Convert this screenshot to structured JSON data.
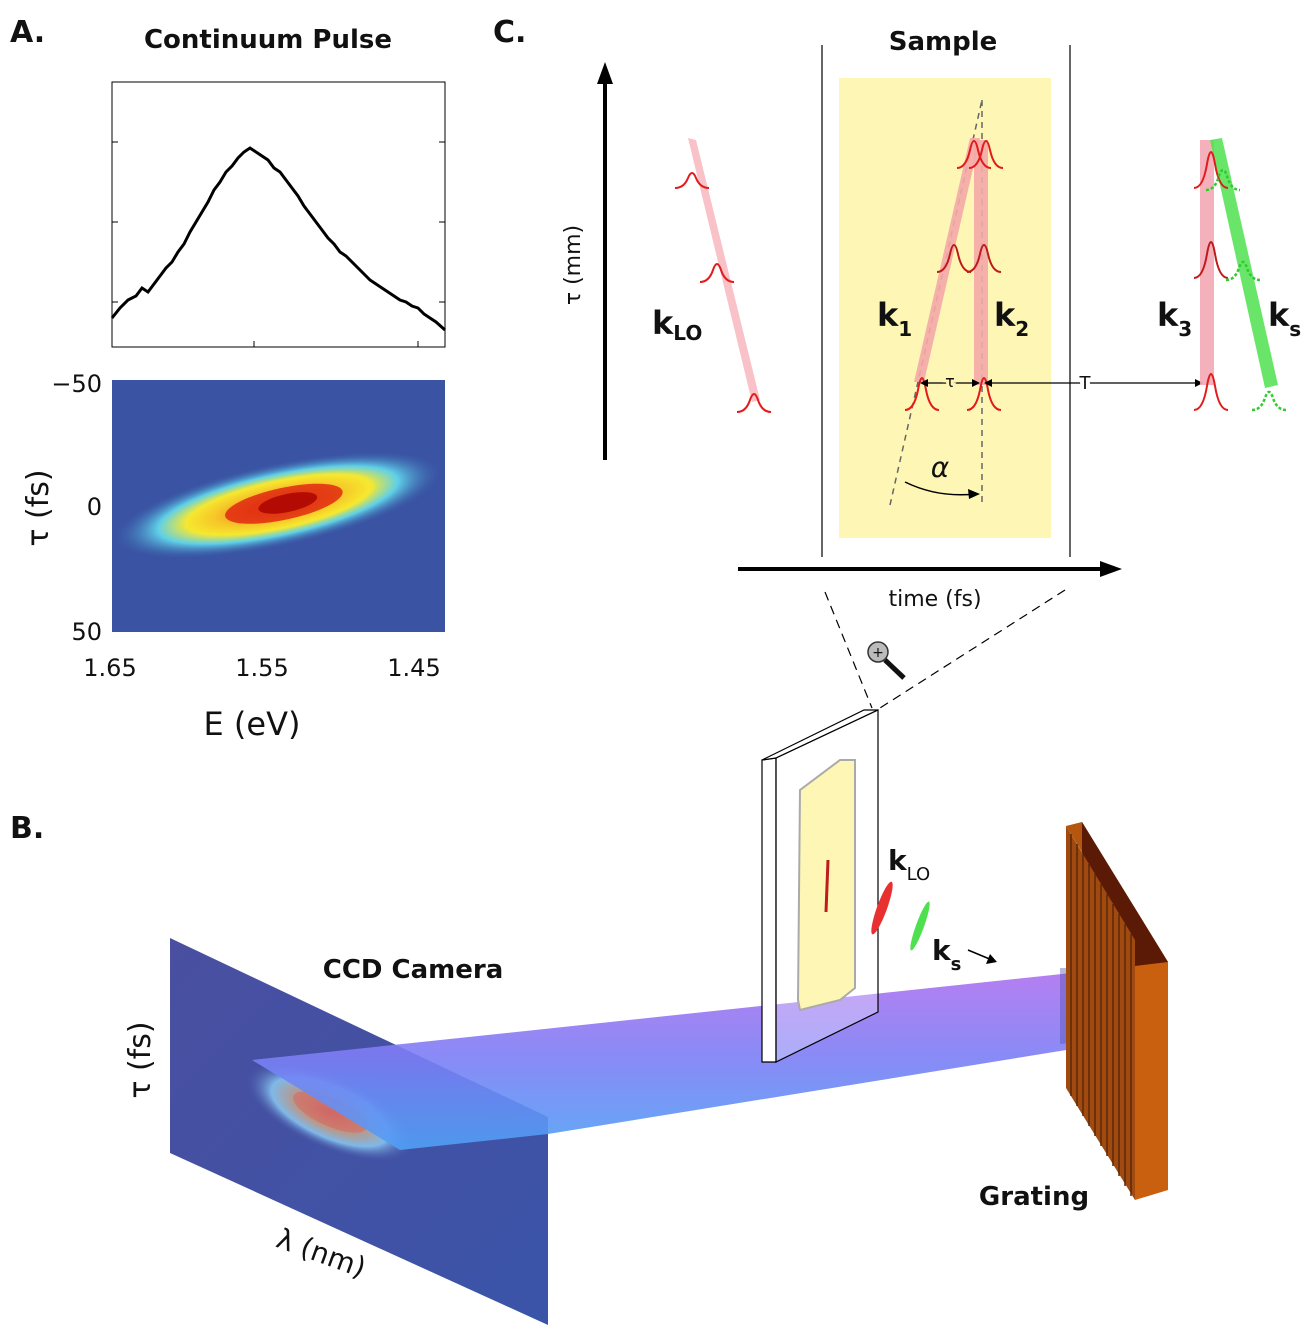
{
  "panels": {
    "a_letter": "A.",
    "b_letter": "B.",
    "c_letter": "C."
  },
  "panel_a": {
    "title": "Continuum Pulse",
    "y_label": "τ (fs)",
    "x_label": "E (eV)",
    "y_ticks": [
      "−50",
      "0",
      "50"
    ],
    "x_ticks": [
      "1.65",
      "1.55",
      "1.45"
    ],
    "spectrum_color": "#000000"
  },
  "panel_b": {
    "ccd_label": "CCD Camera",
    "grating_label": "Grating",
    "ccd_y_label": "τ (fs)",
    "ccd_x_label": "λ (nm)",
    "beam_klo_main": "k",
    "beam_klo_sub": "LO",
    "beam_ks_main": "k",
    "beam_ks_sub": "s"
  },
  "panel_c": {
    "sample_label": "Sample",
    "y_axis_label": "τ (mm)",
    "x_axis_label": "time (fs)",
    "klo_main": "k",
    "klo_sub": "LO",
    "k1_main": "k",
    "k1_sub": "1",
    "k2_main": "k",
    "k2_sub": "2",
    "k3_main": "k",
    "k3_sub": "3",
    "ks_main": "k",
    "ks_sub": "s",
    "tau_mark": "τ",
    "T_mark": "T",
    "alpha_mark": "α",
    "sample_color": "#fdf6b5",
    "pulse_color": "#e31b1b",
    "signal_color": "#2ecc2e"
  }
}
